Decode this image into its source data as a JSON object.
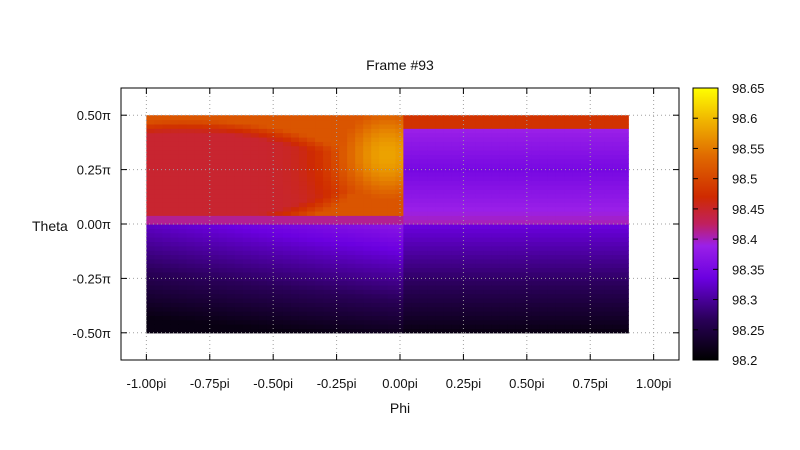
{
  "chart_data": {
    "type": "heatmap",
    "title": "Frame #93",
    "xlabel": "Phi",
    "ylabel": "Theta",
    "xlim": [
      -1.1,
      1.1
    ],
    "ylim": [
      -0.625,
      0.625
    ],
    "x_ticks": [
      -1.0,
      -0.75,
      -0.5,
      -0.25,
      0.0,
      0.25,
      0.5,
      0.75,
      1.0
    ],
    "x_tick_labels": [
      "-1.00pi",
      "-0.75pi",
      "-0.50pi",
      "-0.25pi",
      "0.00pi",
      "0.25pi",
      "0.50pi",
      "0.75pi",
      "1.00pi"
    ],
    "y_ticks": [
      0.5,
      0.25,
      0.0,
      -0.25,
      -0.5
    ],
    "y_tick_labels": [
      "0.50π",
      "0.25π",
      "0.00π",
      "-0.25π",
      "-0.50π"
    ],
    "data_extent": {
      "x": [
        -1.0,
        0.9
      ],
      "y": [
        -0.5,
        0.5
      ]
    },
    "colorbar": {
      "min": 98.2,
      "max": 98.65,
      "ticks": [
        98.65,
        98.6,
        98.55,
        98.5,
        98.45,
        98.4,
        98.35,
        98.3,
        98.25,
        98.2
      ],
      "tick_labels": [
        "98.65",
        "98.6",
        "98.55",
        "98.5",
        "98.45",
        "98.4",
        "98.35",
        "98.3",
        "98.25",
        "98.2"
      ],
      "colormap": [
        {
          "v": 0.0,
          "color": "#000000"
        },
        {
          "v": 0.15,
          "color": "#2a0059"
        },
        {
          "v": 0.3,
          "color": "#6b00e0"
        },
        {
          "v": 0.42,
          "color": "#9a20e8"
        },
        {
          "v": 0.5,
          "color": "#c02060"
        },
        {
          "v": 0.6,
          "color": "#cf2a00"
        },
        {
          "v": 0.75,
          "color": "#e06a00"
        },
        {
          "v": 0.88,
          "color": "#f0b400"
        },
        {
          "v": 1.0,
          "color": "#ffff00"
        }
      ]
    },
    "grid": true,
    "grid_style": "dotted",
    "legend": "colorbar-right"
  }
}
